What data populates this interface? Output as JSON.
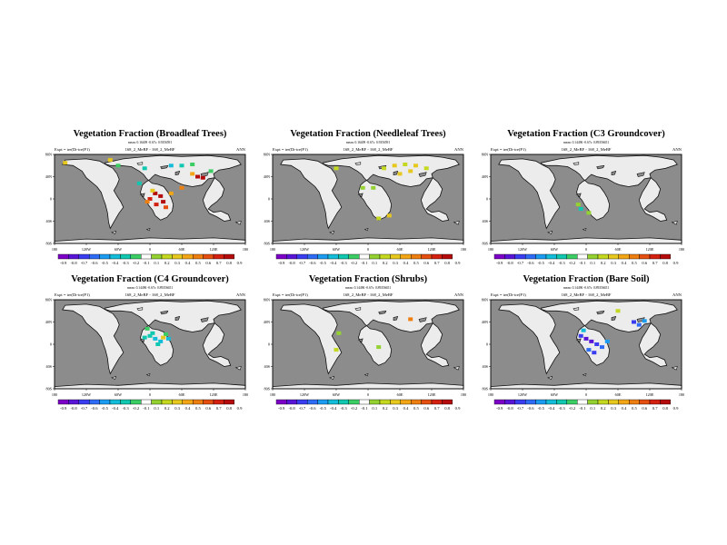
{
  "figure": {
    "colors": {
      "ocean": "#8c8c8c",
      "land": "#ececec",
      "coast": "#101010",
      "missing": "#ffffff"
    }
  },
  "colorbar": {
    "labels": [
      "-0.9",
      "-0.8",
      "-0.7",
      "-0.6",
      "-0.5",
      "-0.4",
      "-0.3",
      "-0.2",
      "-0.1",
      "0.1",
      "0.2",
      "0.3",
      "0.4",
      "0.5",
      "0.6",
      "0.7",
      "0.8",
      "0.9"
    ],
    "colors": [
      "#7d00c7",
      "#5a14d8",
      "#3a3cf0",
      "#2f6cf6",
      "#1c9cf0",
      "#13bcd8",
      "#10c8b0",
      "#3ccc64",
      "#ffffff",
      "#94d232",
      "#c4d820",
      "#e6c81e",
      "#f2a616",
      "#ee7e10",
      "#e44e10",
      "#d42010",
      "#b40c0c"
    ]
  },
  "axes": {
    "lon_labels": [
      "180",
      "120W",
      "60W",
      "0",
      "60E",
      "120E",
      "180"
    ],
    "lat_labels": [
      "80N",
      "40N",
      "0",
      "40S",
      "80S"
    ]
  },
  "panels": [
    {
      "title": "Vegetation Fraction (Broadleaf Trees)",
      "stats": "mean: 0.16409 -0.67s: 0.9356591",
      "left": "Expt = tre(Dt-tre(P1)",
      "center": "168_2_MeBF - 168_2_MeBF",
      "right": "ANN",
      "cells": [
        {
          "lon": 10,
          "lat": 10,
          "v": 0.85
        },
        {
          "lon": 20,
          "lat": 5,
          "v": 0.9
        },
        {
          "lon": 0,
          "lat": 0,
          "v": 0.75
        },
        {
          "lon": 25,
          "lat": -5,
          "v": 0.8
        },
        {
          "lon": 12,
          "lat": -10,
          "v": 0.7
        },
        {
          "lon": -5,
          "lat": -5,
          "v": 0.55
        },
        {
          "lon": 30,
          "lat": -15,
          "v": 0.65
        },
        {
          "lon": 40,
          "lat": 10,
          "v": 0.45
        },
        {
          "lon": 5,
          "lat": 15,
          "v": 0.35
        },
        {
          "lon": 90,
          "lat": 40,
          "v": 0.85
        },
        {
          "lon": 100,
          "lat": 38,
          "v": 0.9
        },
        {
          "lon": 80,
          "lat": 45,
          "v": 0.45
        },
        {
          "lon": 60,
          "lat": 60,
          "v": -0.3
        },
        {
          "lon": 80,
          "lat": 62,
          "v": -0.2
        },
        {
          "lon": 40,
          "lat": 60,
          "v": -0.35
        },
        {
          "lon": -10,
          "lat": 55,
          "v": -0.25
        },
        {
          "lon": -20,
          "lat": 28,
          "v": -0.3
        },
        {
          "lon": -60,
          "lat": 60,
          "v": -0.2
        },
        {
          "lon": -75,
          "lat": 70,
          "v": 0.3
        },
        {
          "lon": -160,
          "lat": 65,
          "v": 0.3
        },
        {
          "lon": 115,
          "lat": 50,
          "v": -0.2
        },
        {
          "lon": 60,
          "lat": 20,
          "v": 0.5
        }
      ]
    },
    {
      "title": "Vegetation Fraction (Needleleaf Trees)",
      "stats": "mean: 0.16409 -0.67s: 0.9356591",
      "left": "Expt = tre(Dt-tre(P1)",
      "center": "168_2_MeBF - 168_2_MeBF",
      "right": "ANN",
      "cells": [
        {
          "lon": 50,
          "lat": 60,
          "v": 0.3
        },
        {
          "lon": 70,
          "lat": 62,
          "v": 0.25
        },
        {
          "lon": 90,
          "lat": 60,
          "v": 0.35
        },
        {
          "lon": 60,
          "lat": 45,
          "v": 0.3
        },
        {
          "lon": 30,
          "lat": 55,
          "v": 0.2
        },
        {
          "lon": 110,
          "lat": 55,
          "v": 0.25
        },
        {
          "lon": 80,
          "lat": 50,
          "v": 0.35
        },
        {
          "lon": 20,
          "lat": -35,
          "v": 0.2
        },
        {
          "lon": 40,
          "lat": -30,
          "v": 0.3
        },
        {
          "lon": -60,
          "lat": 55,
          "v": 0.2
        },
        {
          "lon": -10,
          "lat": 20,
          "v": 0.1
        },
        {
          "lon": 10,
          "lat": 20,
          "v": 0.15
        }
      ]
    },
    {
      "title": "Vegetation Fraction (C3 Groundcover)",
      "stats": "mean: 0.14496 -0.67s: 0.89356651",
      "left": "Expt = tre(Dt-tre(P1)",
      "center": "168_2_MeBF - 168_2_MeBF",
      "right": "ANN",
      "cells": [
        {
          "lon": -15,
          "lat": -10,
          "v": 0.1
        },
        {
          "lon": -10,
          "lat": -18,
          "v": -0.25
        },
        {
          "lon": 5,
          "lat": -25,
          "v": 0.15
        }
      ]
    },
    {
      "title": "Vegetation Fraction (C4 Groundcover)",
      "stats": "mean: 0.14496 -0.67s: 0.89356651",
      "left": "Expt = tre(Dt-tre(P1)",
      "center": "168_2_MeBF - 168_2_MeBF",
      "right": "ANN",
      "cells": [
        {
          "lon": 0,
          "lat": 15,
          "v": -0.3
        },
        {
          "lon": 10,
          "lat": 10,
          "v": -0.4
        },
        {
          "lon": 20,
          "lat": 5,
          "v": -0.35
        },
        {
          "lon": 5,
          "lat": 20,
          "v": -0.25
        },
        {
          "lon": -10,
          "lat": 12,
          "v": -0.3
        },
        {
          "lon": 30,
          "lat": 18,
          "v": -0.2
        },
        {
          "lon": 15,
          "lat": 0,
          "v": -0.3
        },
        {
          "lon": 25,
          "lat": 12,
          "v": 0.35
        },
        {
          "lon": -5,
          "lat": 28,
          "v": -0.2
        },
        {
          "lon": 35,
          "lat": 10,
          "v": -0.35
        }
      ]
    },
    {
      "title": "Vegetation Fraction (Shrubs)",
      "stats": "mean: 0.14496 -0.67s: 0.89356651",
      "left": "Expt = tre(Dt-tre(P1)",
      "center": "168_2_MeBF - 168_2_MeBF",
      "right": "ANN",
      "cells": [
        {
          "lon": 80,
          "lat": 45,
          "v": 0.55
        },
        {
          "lon": -55,
          "lat": 20,
          "v": 0.15
        },
        {
          "lon": -60,
          "lat": -10,
          "v": 0.2
        },
        {
          "lon": 20,
          "lat": -5,
          "v": 0.15
        }
      ]
    },
    {
      "title": "Vegetation Fraction (Bare Soil)",
      "stats": "mean: 0.14496 -0.67s: 0.89356651",
      "left": "Expt = tre(Dt-tre(P1)",
      "center": "168_2_MeBF - 168_2_MeBF",
      "right": "ANN",
      "cells": [
        {
          "lon": 0,
          "lat": 10,
          "v": -0.75
        },
        {
          "lon": 10,
          "lat": 5,
          "v": -0.8
        },
        {
          "lon": 20,
          "lat": 0,
          "v": -0.7
        },
        {
          "lon": 30,
          "lat": -5,
          "v": -0.6
        },
        {
          "lon": -10,
          "lat": 15,
          "v": -0.65
        },
        {
          "lon": 5,
          "lat": -10,
          "v": -0.55
        },
        {
          "lon": 15,
          "lat": -15,
          "v": -0.7
        },
        {
          "lon": 40,
          "lat": 5,
          "v": -0.5
        },
        {
          "lon": 90,
          "lat": 40,
          "v": -0.65
        },
        {
          "lon": 100,
          "lat": 35,
          "v": -0.55
        },
        {
          "lon": 110,
          "lat": 42,
          "v": -0.45
        },
        {
          "lon": 60,
          "lat": 60,
          "v": 0.2
        },
        {
          "lon": -5,
          "lat": 25,
          "v": -0.4
        }
      ]
    }
  ]
}
